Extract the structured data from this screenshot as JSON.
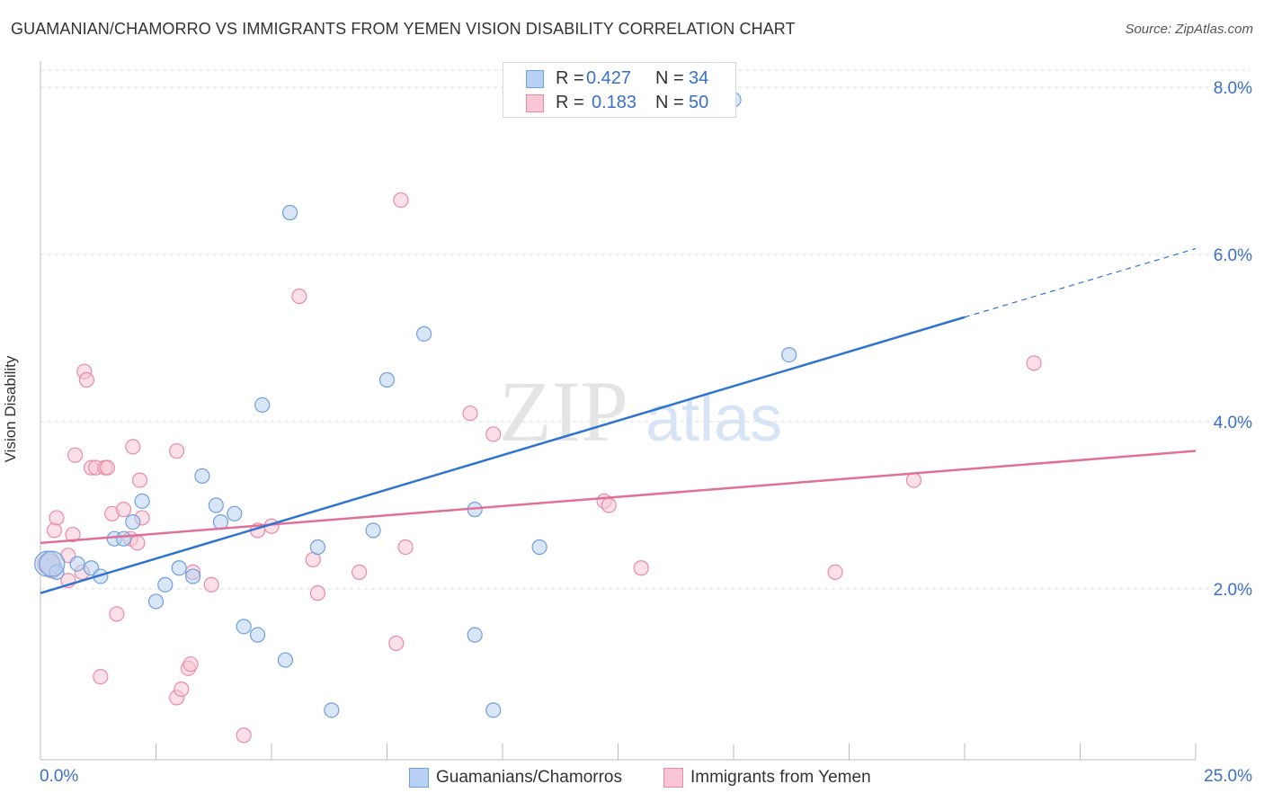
{
  "header": {
    "title": "GUAMANIAN/CHAMORRO VS IMMIGRANTS FROM YEMEN VISION DISABILITY CORRELATION CHART",
    "source": "Source: ZipAtlas.com"
  },
  "watermark": {
    "zip": "ZIP",
    "atlas": "atlas"
  },
  "legend_top": {
    "rows": [
      {
        "r_label": "R =",
        "r_value": "0.427",
        "n_label": "N =",
        "n_value": "34"
      },
      {
        "r_label": "R =",
        "r_value": "0.183",
        "n_label": "N =",
        "n_value": "50"
      }
    ]
  },
  "legend_bottom": {
    "items": [
      {
        "label": "Guamanians/Chamorros"
      },
      {
        "label": "Immigrants from Yemen"
      }
    ]
  },
  "colors": {
    "blue_fill": "#b8d1f3",
    "blue_stroke": "#6f9fdc",
    "blue_line": "#2f73d0",
    "pink_fill": "#f8c6d4",
    "pink_stroke": "#e98aa8",
    "pink_line": "#e0709a",
    "axis_text": "#3a6fc7",
    "grid": "#dddddd"
  },
  "chart_data": {
    "type": "scatter",
    "title": "GUAMANIAN/CHAMORRO VS IMMIGRANTS FROM YEMEN VISION DISABILITY CORRELATION CHART",
    "xlabel": "",
    "ylabel": "Vision Disability",
    "xlim": [
      0,
      25
    ],
    "ylim": [
      0,
      8.4
    ],
    "x_tick_labels": [
      "0.0%",
      "25.0%"
    ],
    "y_ticks": [
      2,
      4,
      6,
      8
    ],
    "y_tick_labels": [
      "2.0%",
      "4.0%",
      "6.0%",
      "8.0%"
    ],
    "grid": true,
    "legend_position": "top-center",
    "series": [
      {
        "name": "Guamanians/Chamorros",
        "r": 0.427,
        "n": 34,
        "points": [
          [
            0.15,
            2.3
          ],
          [
            0.35,
            2.2
          ],
          [
            0.8,
            2.3
          ],
          [
            1.1,
            2.25
          ],
          [
            1.3,
            2.15
          ],
          [
            1.6,
            2.6
          ],
          [
            1.8,
            2.6
          ],
          [
            2.0,
            2.8
          ],
          [
            2.2,
            3.05
          ],
          [
            2.5,
            1.85
          ],
          [
            2.7,
            2.05
          ],
          [
            3.0,
            2.25
          ],
          [
            3.3,
            2.15
          ],
          [
            3.5,
            3.35
          ],
          [
            3.8,
            3.0
          ],
          [
            3.9,
            2.8
          ],
          [
            4.2,
            2.9
          ],
          [
            4.4,
            1.55
          ],
          [
            4.7,
            1.45
          ],
          [
            4.8,
            4.2
          ],
          [
            5.3,
            1.15
          ],
          [
            5.4,
            6.5
          ],
          [
            6.0,
            2.5
          ],
          [
            6.3,
            0.55
          ],
          [
            7.2,
            2.7
          ],
          [
            7.5,
            4.5
          ],
          [
            8.3,
            5.05
          ],
          [
            9.4,
            2.95
          ],
          [
            9.4,
            1.45
          ],
          [
            9.8,
            0.55
          ],
          [
            10.8,
            2.5
          ],
          [
            15.0,
            7.85
          ],
          [
            16.2,
            4.8
          ],
          [
            0.25,
            2.3
          ]
        ],
        "trend": {
          "x_start": 0,
          "y_start": 1.95,
          "x_solid_end": 20,
          "y_solid_end": 5.25,
          "x_end": 25,
          "y_end": 6.07
        }
      },
      {
        "name": "Immigrants from Yemen",
        "r": 0.183,
        "n": 50,
        "points": [
          [
            0.15,
            2.3
          ],
          [
            0.25,
            2.25
          ],
          [
            0.3,
            2.7
          ],
          [
            0.35,
            2.85
          ],
          [
            0.6,
            2.4
          ],
          [
            0.6,
            2.1
          ],
          [
            0.7,
            2.65
          ],
          [
            0.75,
            3.6
          ],
          [
            0.9,
            2.2
          ],
          [
            0.95,
            4.6
          ],
          [
            1.0,
            4.5
          ],
          [
            1.1,
            3.45
          ],
          [
            1.2,
            3.45
          ],
          [
            1.3,
            0.95
          ],
          [
            1.4,
            3.45
          ],
          [
            1.45,
            3.45
          ],
          [
            1.55,
            2.9
          ],
          [
            1.65,
            1.7
          ],
          [
            1.8,
            2.95
          ],
          [
            1.95,
            2.6
          ],
          [
            2.0,
            3.7
          ],
          [
            2.1,
            2.55
          ],
          [
            2.15,
            3.3
          ],
          [
            2.2,
            2.85
          ],
          [
            2.95,
            3.65
          ],
          [
            2.95,
            0.7
          ],
          [
            3.05,
            0.8
          ],
          [
            3.2,
            1.05
          ],
          [
            3.25,
            1.1
          ],
          [
            3.3,
            2.2
          ],
          [
            3.7,
            2.05
          ],
          [
            4.4,
            0.25
          ],
          [
            4.7,
            2.7
          ],
          [
            5.0,
            2.75
          ],
          [
            5.6,
            5.5
          ],
          [
            5.9,
            2.35
          ],
          [
            6.0,
            1.95
          ],
          [
            6.9,
            2.2
          ],
          [
            7.7,
            1.35
          ],
          [
            7.8,
            6.65
          ],
          [
            7.9,
            2.5
          ],
          [
            9.3,
            4.1
          ],
          [
            9.8,
            3.85
          ],
          [
            12.2,
            3.05
          ],
          [
            12.3,
            3.0
          ],
          [
            13.0,
            2.25
          ],
          [
            17.2,
            2.2
          ],
          [
            18.9,
            3.3
          ],
          [
            21.5,
            4.7
          ],
          [
            0.2,
            2.3
          ]
        ],
        "trend": {
          "x_start": 0,
          "y_start": 2.55,
          "x_end": 25,
          "y_end": 3.65
        }
      }
    ]
  }
}
